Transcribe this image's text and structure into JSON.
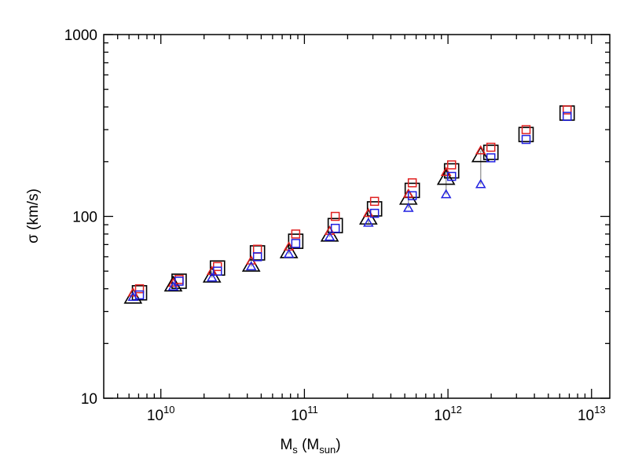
{
  "chart_data": {
    "type": "scatter",
    "x_label_parts": [
      "M",
      "s",
      " (M",
      "sun",
      ")"
    ],
    "y_label": "σ (km/s)",
    "xscale": "log",
    "yscale": "log",
    "xlim": [
      4000000000,
      13400000000000
    ],
    "ylim": [
      10,
      1000
    ],
    "xticks": [
      {
        "value": 10000000000,
        "label": "10",
        "exponent": "10"
      },
      {
        "value": 100000000000,
        "label": "10",
        "exponent": "11"
      },
      {
        "value": 1000000000000,
        "label": "10",
        "exponent": "12"
      },
      {
        "value": 10000000000000,
        "label": "10",
        "exponent": "13"
      }
    ],
    "yticks": [
      10,
      100,
      1000
    ],
    "minor_ticks": true,
    "connector_color": "#a0a0a0",
    "series": [
      {
        "name": "black triangles",
        "color": "#000000",
        "marker": "triangle",
        "size": 19,
        "x": [
          6400000000,
          12200000000,
          22700000000,
          42600000000,
          78000000000,
          150000000000,
          279000000000,
          530000000000,
          970000000000,
          1690000000000
        ],
        "values": [
          36,
          42,
          47,
          54,
          64,
          79,
          98,
          126,
          162,
          216
        ]
      },
      {
        "name": "black squares",
        "color": "#000000",
        "marker": "square",
        "size": 18,
        "x": [
          7100000000,
          13400000000,
          24800000000,
          47100000000,
          87000000000,
          164000000000,
          308000000000,
          564000000000,
          1060000000000,
          1990000000000,
          3500000000000,
          6760000000000
        ],
        "values": [
          38,
          44,
          52,
          63,
          73,
          89,
          110,
          139,
          178,
          225,
          282,
          370
        ]
      },
      {
        "name": "red triangles",
        "color": "#e02020",
        "marker": "triangle",
        "size": 10,
        "x": [
          6400000000,
          12200000000,
          22700000000,
          42600000000,
          78000000000,
          150000000000,
          279000000000,
          530000000000,
          970000000000,
          1690000000000
        ],
        "values": [
          38,
          43,
          50,
          57,
          68,
          83,
          104,
          133,
          175,
          230
        ]
      },
      {
        "name": "red squares",
        "color": "#e02020",
        "marker": "square",
        "size": 10,
        "x": [
          7100000000,
          13400000000,
          24800000000,
          47100000000,
          87000000000,
          164000000000,
          308000000000,
          564000000000,
          1060000000000,
          1990000000000,
          3500000000000,
          6760000000000
        ],
        "values": [
          40,
          45,
          53,
          66,
          80,
          100,
          121,
          153,
          192,
          240,
          300,
          385
        ]
      },
      {
        "name": "blue triangles",
        "color": "#2020e0",
        "marker": "triangle",
        "size": 10,
        "x": [
          6400000000,
          12200000000,
          22700000000,
          42600000000,
          78000000000,
          150000000000,
          279000000000,
          530000000000,
          970000000000,
          1690000000000
        ],
        "values": [
          36,
          41,
          46,
          53,
          62,
          77,
          92,
          111,
          132,
          150
        ]
      },
      {
        "name": "blue squares",
        "color": "#2020e0",
        "marker": "square",
        "size": 10,
        "x": [
          7100000000,
          13400000000,
          24800000000,
          47100000000,
          87000000000,
          164000000000,
          308000000000,
          564000000000,
          1060000000000,
          1990000000000,
          3500000000000,
          6760000000000
        ],
        "values": [
          37,
          44,
          50,
          60,
          71,
          86,
          104,
          130,
          166,
          210,
          265,
          355
        ]
      }
    ]
  }
}
